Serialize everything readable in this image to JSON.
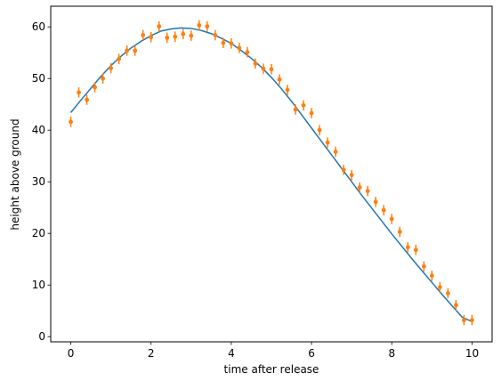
{
  "chart_data": {
    "type": "scatter",
    "title": "",
    "xlabel": "time after release",
    "ylabel": "height above ground",
    "xlim": [
      -0.5,
      10.5
    ],
    "ylim": [
      -1,
      64
    ],
    "xticks": [
      0,
      2,
      4,
      6,
      8,
      10
    ],
    "yticks": [
      0,
      10,
      20,
      30,
      40,
      50,
      60
    ],
    "grid": false,
    "series": [
      {
        "type": "line",
        "color": "#1f77b4",
        "x": [
          0,
          0.25,
          0.5,
          0.75,
          1,
          1.25,
          1.5,
          1.75,
          2,
          2.25,
          2.5,
          2.75,
          3,
          3.25,
          3.5,
          3.75,
          4,
          4.25,
          4.5,
          4.75,
          5,
          5.25,
          5.5,
          5.75,
          6,
          6.25,
          6.5,
          6.75,
          7,
          7.25,
          7.5,
          7.75,
          8,
          8.25,
          8.5,
          8.75,
          9,
          9.25,
          9.5,
          9.75,
          10
        ],
        "y": [
          43.4,
          45.8,
          48.1,
          50.4,
          52.5,
          54.3,
          55.9,
          57.2,
          58.3,
          59.2,
          59.6,
          59.8,
          59.7,
          59.3,
          58.7,
          57.8,
          56.8,
          55.4,
          53.9,
          52.2,
          50.2,
          48.0,
          45.6,
          43.0,
          40.4,
          37.8,
          35.2,
          32.6,
          30.0,
          27.4,
          24.9,
          22.4,
          19.9,
          17.5,
          15.1,
          12.8,
          10.5,
          8.2,
          6.0,
          3.8,
          2.9
        ]
      },
      {
        "type": "errorbar",
        "color": "#ff7f0e",
        "x": [
          0,
          0.2,
          0.4,
          0.6,
          0.8,
          1.0,
          1.2,
          1.4,
          1.6,
          1.8,
          2.0,
          2.2,
          2.4,
          2.6,
          2.8,
          3.0,
          3.2,
          3.4,
          3.6,
          3.8,
          4.0,
          4.2,
          4.4,
          4.6,
          4.8,
          5.0,
          5.2,
          5.4,
          5.6,
          5.8,
          6.0,
          6.2,
          6.4,
          6.6,
          6.8,
          7.0,
          7.2,
          7.4,
          7.6,
          7.8,
          8.0,
          8.2,
          8.4,
          8.6,
          8.8,
          9.0,
          9.2,
          9.4,
          9.6,
          9.8,
          10.0
        ],
        "y": [
          41.6,
          47.3,
          45.9,
          48.3,
          50.0,
          52.0,
          53.8,
          55.4,
          55.4,
          58.4,
          58.0,
          60.1,
          57.9,
          58.1,
          58.6,
          58.3,
          60.3,
          60.1,
          58.4,
          56.9,
          56.8,
          55.9,
          55.1,
          52.9,
          51.9,
          51.8,
          49.8,
          47.8,
          44.0,
          44.8,
          43.3,
          40.0,
          37.6,
          35.8,
          32.3,
          31.3,
          28.9,
          28.2,
          26.1,
          24.5,
          22.8,
          20.3,
          17.3,
          16.8,
          13.6,
          11.8,
          9.6,
          8.4,
          6.1,
          3.2,
          3.2
        ],
        "yerr": [
          1.0,
          1.0,
          1.0,
          1.0,
          1.0,
          1.0,
          1.0,
          1.0,
          1.0,
          1.0,
          1.0,
          1.0,
          1.0,
          1.0,
          1.0,
          1.0,
          1.0,
          1.0,
          1.0,
          1.0,
          1.0,
          1.0,
          1.0,
          1.0,
          1.0,
          1.0,
          1.0,
          1.0,
          1.0,
          1.0,
          1.0,
          1.0,
          1.0,
          1.0,
          1.0,
          1.0,
          1.0,
          1.0,
          1.0,
          1.0,
          1.0,
          1.0,
          1.0,
          1.0,
          1.0,
          1.0,
          1.0,
          1.0,
          1.0,
          1.0,
          1.0
        ]
      }
    ]
  }
}
